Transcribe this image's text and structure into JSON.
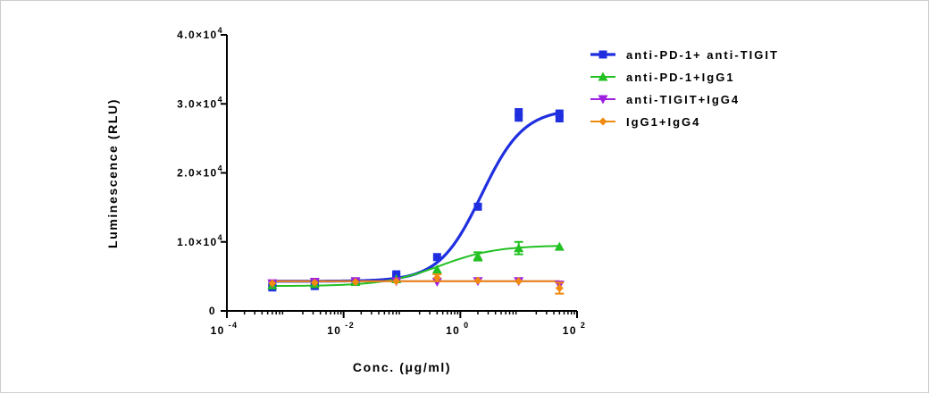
{
  "chart_data": {
    "type": "scatter",
    "xlabel": "Conc. (μg/ml)",
    "ylabel": "Luminescence (RLU)",
    "x_scale": "log",
    "xlim": [
      0.0001,
      100
    ],
    "ylim": [
      0,
      40000
    ],
    "x_ticks": [
      {
        "value": 0.0001,
        "base": "10",
        "exp": "-4"
      },
      {
        "value": 0.01,
        "base": "10",
        "exp": "-2"
      },
      {
        "value": 1,
        "base": "10",
        "exp": "0"
      },
      {
        "value": 100,
        "base": "10",
        "exp": "2"
      }
    ],
    "y_ticks": [
      {
        "value": 0,
        "mantissa": "0",
        "exp": ""
      },
      {
        "value": 10000,
        "mantissa": "1.0×10",
        "exp": "4"
      },
      {
        "value": 20000,
        "mantissa": "2.0×10",
        "exp": "4"
      },
      {
        "value": 30000,
        "mantissa": "3.0×10",
        "exp": "4"
      },
      {
        "value": 40000,
        "mantissa": "4.0×10",
        "exp": "4"
      }
    ],
    "legend_position": "right",
    "grid": false,
    "series": [
      {
        "name": "anti-PD-1+ anti-TIGIT",
        "color": "#1f2fe0",
        "marker": "square",
        "points": [
          {
            "x": 0.0006,
            "y": 3400
          },
          {
            "x": 0.0006,
            "y": 3700
          },
          {
            "x": 0.0032,
            "y": 3600
          },
          {
            "x": 0.0032,
            "y": 3900
          },
          {
            "x": 0.016,
            "y": 4200
          },
          {
            "x": 0.08,
            "y": 5000
          },
          {
            "x": 0.08,
            "y": 5300
          },
          {
            "x": 0.4,
            "y": 7800
          },
          {
            "x": 2,
            "y": 15100
          },
          {
            "x": 10,
            "y": 28000
          },
          {
            "x": 10,
            "y": 28800
          },
          {
            "x": 50,
            "y": 27900
          },
          {
            "x": 50,
            "y": 28600
          }
        ],
        "fit": {
          "bottom": 4300,
          "top": 29300,
          "ec50": 2.3,
          "hill": 1.2
        }
      },
      {
        "name": "anti-PD-1+IgG1",
        "color": "#22c022",
        "marker": "triangle-up",
        "points": [
          {
            "x": 0.0006,
            "y": 3700
          },
          {
            "x": 0.0032,
            "y": 3900
          },
          {
            "x": 0.016,
            "y": 4200
          },
          {
            "x": 0.08,
            "y": 4600
          },
          {
            "x": 0.4,
            "y": 6000
          },
          {
            "x": 2,
            "y": 7900,
            "err": 600
          },
          {
            "x": 10,
            "y": 9100,
            "err": 900
          },
          {
            "x": 50,
            "y": 9300
          }
        ],
        "fit": {
          "bottom": 3600,
          "top": 9500,
          "ec50": 0.45,
          "hill": 0.9
        }
      },
      {
        "name": "anti-TIGIT+IgG4",
        "color": "#a020e0",
        "marker": "triangle-down",
        "points": [
          {
            "x": 0.0006,
            "y": 4000
          },
          {
            "x": 0.0032,
            "y": 4200
          },
          {
            "x": 0.016,
            "y": 4300
          },
          {
            "x": 0.08,
            "y": 4300
          },
          {
            "x": 0.4,
            "y": 4200
          },
          {
            "x": 2,
            "y": 4300
          },
          {
            "x": 10,
            "y": 4300
          },
          {
            "x": 50,
            "y": 3800
          }
        ],
        "fit": {
          "bottom": 4300,
          "top": 4300,
          "ec50": 1,
          "hill": 1
        }
      },
      {
        "name": "IgG1+IgG4",
        "color": "#f08a10",
        "marker": "diamond",
        "points": [
          {
            "x": 0.0006,
            "y": 4000
          },
          {
            "x": 0.0032,
            "y": 4100
          },
          {
            "x": 0.016,
            "y": 4200
          },
          {
            "x": 0.08,
            "y": 4300
          },
          {
            "x": 0.4,
            "y": 4800,
            "err": 500
          },
          {
            "x": 2,
            "y": 4400
          },
          {
            "x": 10,
            "y": 4300
          },
          {
            "x": 50,
            "y": 3300,
            "err": 800
          }
        ],
        "fit": {
          "bottom": 4300,
          "top": 4300,
          "ec50": 1,
          "hill": 1
        }
      }
    ]
  }
}
